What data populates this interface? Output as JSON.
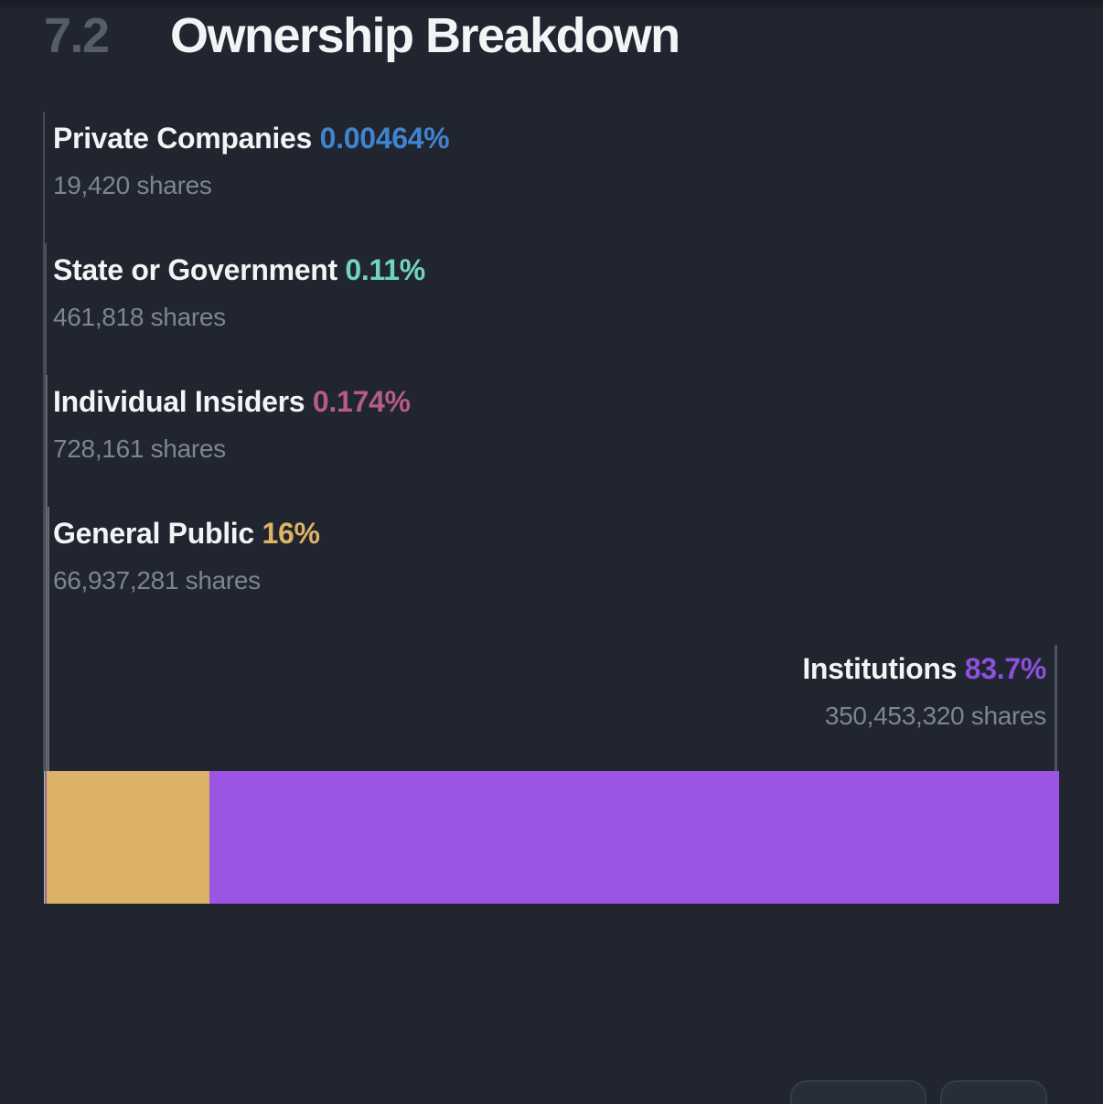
{
  "header": {
    "section_number": "7.2",
    "title": "Ownership Breakdown"
  },
  "colors": {
    "background": "#20252f",
    "title_text": "#f2f4f6",
    "section_number_muted": "#565c68",
    "label_text": "#f2f4f6",
    "shares_text": "#7e8591",
    "leader_line": "#9aa1ac",
    "button_fill": "#272d39",
    "button_border": "#353c49"
  },
  "chart_data": {
    "type": "bar",
    "subtype": "horizontal-stacked",
    "title": "Ownership Breakdown",
    "unit": "% of shares outstanding",
    "xlim": [
      0,
      100
    ],
    "legend_position": "inline-labels",
    "grid": false,
    "categories": [
      "Private Companies",
      "State or Government",
      "Individual Insiders",
      "General Public",
      "Institutions"
    ],
    "values": [
      0.00464,
      0.11,
      0.174,
      16,
      83.7
    ],
    "series": [
      {
        "name": "Private Companies",
        "percent": "0.00464%",
        "percent_value": 0.00464,
        "shares": "19,420 shares",
        "shares_value": 19420,
        "color": "#4183d0"
      },
      {
        "name": "State or Government",
        "percent": "0.11%",
        "percent_value": 0.11,
        "shares": "461,818 shares",
        "shares_value": 461818,
        "color": "#70d4c0"
      },
      {
        "name": "Individual Insiders",
        "percent": "0.174%",
        "percent_value": 0.174,
        "shares": "728,161 shares",
        "shares_value": 728161,
        "color": "#b45b89"
      },
      {
        "name": "General Public",
        "percent": "16%",
        "percent_value": 16,
        "shares": "66,937,281 shares",
        "shares_value": 66937281,
        "color": "#dcb268"
      },
      {
        "name": "Institutions",
        "percent": "83.7%",
        "percent_value": 83.7,
        "shares": "350,453,320 shares",
        "shares_value": 350453320,
        "color": "#9b55e2"
      }
    ],
    "text_accent_colors": {
      "private_companies": "#4183d0",
      "state_or_government": "#70d4c0",
      "individual_insiders": "#b45b89",
      "general_public": "#dfb365",
      "institutions": "#8c50dc"
    }
  },
  "footer_buttons": [
    {
      "label": ""
    },
    {
      "label": ""
    }
  ]
}
